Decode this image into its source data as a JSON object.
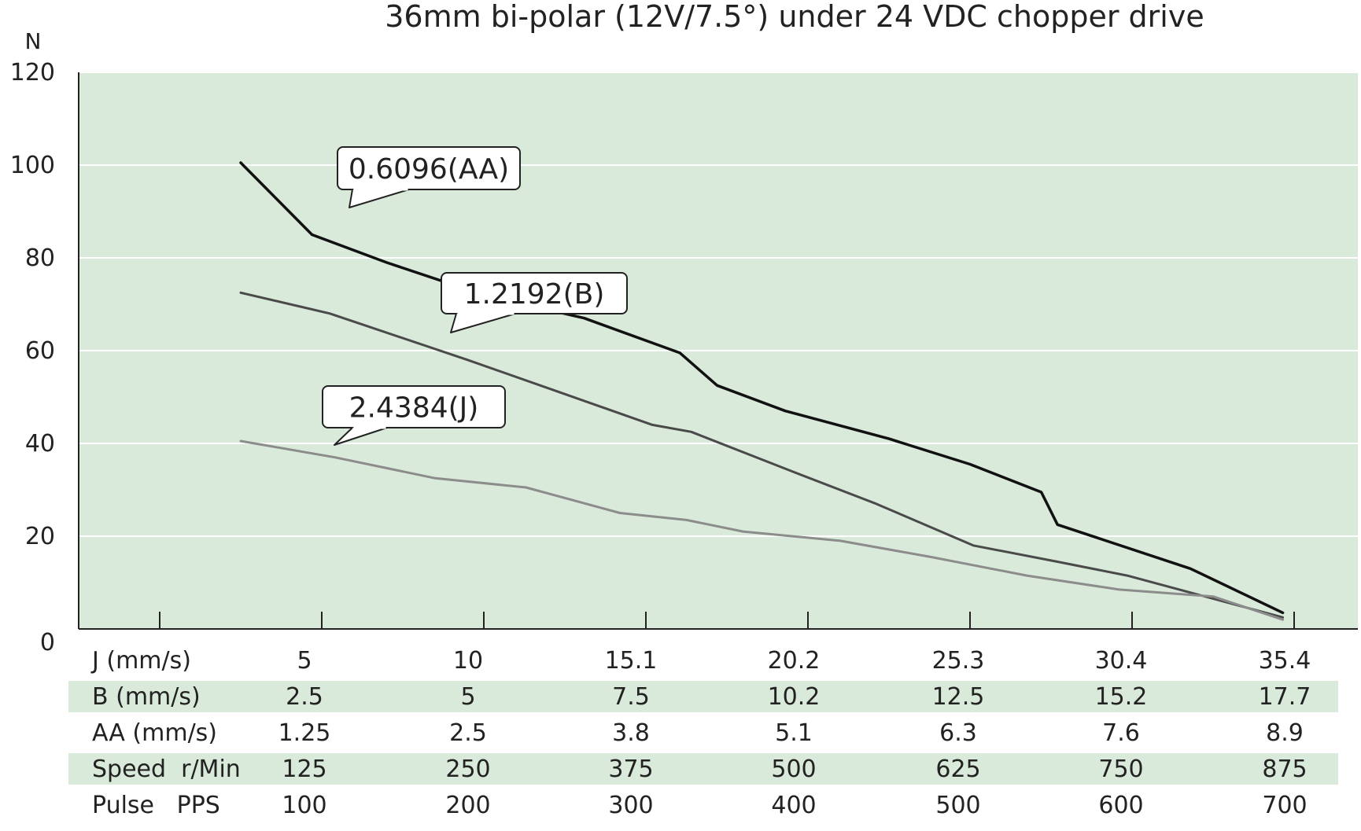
{
  "chart_data": {
    "type": "line",
    "title": "36mm bi-polar (12V/7.5°) under 24 VDC chopper drive",
    "ylabel": "N",
    "xlabel": "",
    "ylim": [
      0,
      120
    ],
    "y_ticks": [
      "0",
      "20",
      "40",
      "60",
      "80",
      "100",
      "120"
    ],
    "grid": true,
    "x_pps_range": [
      0,
      800
    ],
    "series": [
      {
        "name": "0.6096(AA)",
        "color": "#111111",
        "x": [
          100,
          144,
          190,
          250,
          312,
          371,
          394,
          436,
          500,
          550,
          594,
          604,
          686,
          743
        ],
        "y": [
          100.5,
          85,
          79,
          72,
          67,
          59.5,
          52.5,
          47,
          41,
          35.5,
          29.5,
          22.5,
          13,
          3.5
        ]
      },
      {
        "name": "1.2192(B)",
        "color": "#4a4a4a",
        "x": [
          100,
          155,
          240,
          297,
          354,
          378,
          440,
          492,
          552,
          604,
          647,
          743
        ],
        "y": [
          72.5,
          68,
          58,
          51,
          44,
          42.5,
          34,
          27,
          18,
          14.5,
          11.5,
          2.5
        ]
      },
      {
        "name": "2.4384(J)",
        "color": "#8c8c8c",
        "x": [
          100,
          158,
          220,
          276,
          334,
          375,
          410,
          470,
          526,
          585,
          642,
          700,
          743
        ],
        "y": [
          40.5,
          37,
          32.5,
          30.5,
          25,
          23.5,
          21,
          19,
          15.5,
          11.5,
          8.5,
          7,
          2
        ]
      }
    ],
    "table": {
      "rows": [
        {
          "label": "J (mm/s)",
          "values": [
            "5",
            "10",
            "15.1",
            "20.2",
            "25.3",
            "30.4",
            "35.4"
          ],
          "shaded": false
        },
        {
          "label": "B (mm/s)",
          "values": [
            "2.5",
            "5",
            "7.5",
            "10.2",
            "12.5",
            "15.2",
            "17.7"
          ],
          "shaded": true
        },
        {
          "label": "AA (mm/s)",
          "values": [
            "1.25",
            "2.5",
            "3.8",
            "5.1",
            "6.3",
            "7.6",
            "8.9"
          ],
          "shaded": false
        },
        {
          "label": "Speed  r/Min",
          "values": [
            "125",
            "250",
            "375",
            "500",
            "625",
            "750",
            "875"
          ],
          "shaded": true
        },
        {
          "label": "Pulse   PPS",
          "values": [
            "100",
            "200",
            "300",
            "400",
            "500",
            "600",
            "700"
          ],
          "shaded": false
        }
      ]
    },
    "colors": {
      "plot_background": "#d9eada",
      "row_shade": "#d9eada",
      "gridline": "#ffffff",
      "axis": "#222222"
    }
  }
}
